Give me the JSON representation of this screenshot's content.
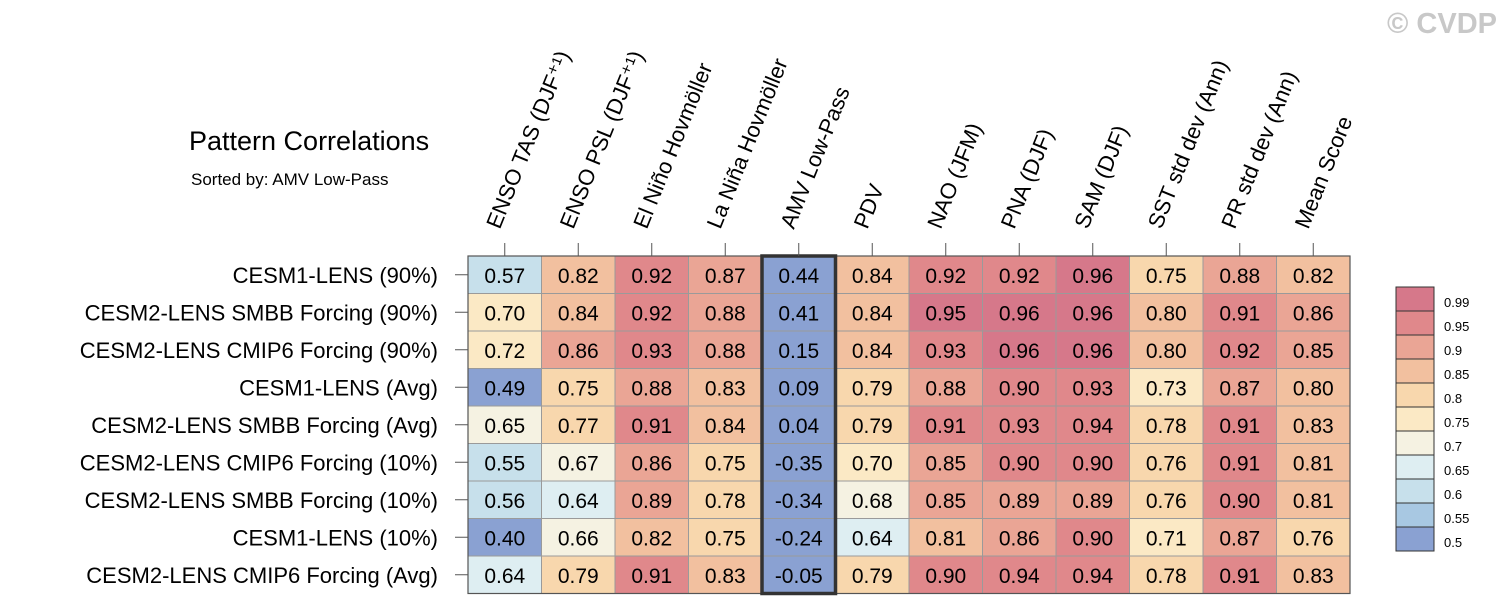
{
  "title": "Pattern Correlations",
  "subtitle": "Sorted by: AMV Low-Pass",
  "watermark": "© CVDP",
  "chart_data": {
    "type": "heatmap",
    "columns": [
      "ENSO TAS (DJF⁺¹)",
      "ENSO PSL (DJF⁺¹)",
      "El Niño Hovmöller",
      "La Niña Hovmöller",
      "AMV Low-Pass",
      "PDV",
      "NAO (JFM)",
      "PNA (DJF)",
      "SAM (DJF)",
      "SST std dev (Ann)",
      "PR std dev (Ann)",
      "Mean Score"
    ],
    "rows": [
      "CESM1-LENS (90%)",
      "CESM2-LENS SMBB Forcing (90%)",
      "CESM2-LENS CMIP6 Forcing (90%)",
      "CESM1-LENS (Avg)",
      "CESM2-LENS SMBB Forcing (Avg)",
      "CESM2-LENS CMIP6 Forcing (10%)",
      "CESM2-LENS SMBB Forcing (10%)",
      "CESM1-LENS (10%)",
      "CESM2-LENS CMIP6 Forcing (Avg)"
    ],
    "values": [
      [
        "0.57",
        "0.82",
        "0.92",
        "0.87",
        "0.44",
        "0.84",
        "0.92",
        "0.92",
        "0.96",
        "0.75",
        "0.88",
        "0.82"
      ],
      [
        "0.70",
        "0.84",
        "0.92",
        "0.88",
        "0.41",
        "0.84",
        "0.95",
        "0.96",
        "0.96",
        "0.80",
        "0.91",
        "0.86"
      ],
      [
        "0.72",
        "0.86",
        "0.93",
        "0.88",
        "0.15",
        "0.84",
        "0.93",
        "0.96",
        "0.96",
        "0.80",
        "0.92",
        "0.85"
      ],
      [
        "0.49",
        "0.75",
        "0.88",
        "0.83",
        "0.09",
        "0.79",
        "0.88",
        "0.90",
        "0.93",
        "0.73",
        "0.87",
        "0.80"
      ],
      [
        "0.65",
        "0.77",
        "0.91",
        "0.84",
        "0.04",
        "0.79",
        "0.91",
        "0.93",
        "0.94",
        "0.78",
        "0.91",
        "0.83"
      ],
      [
        "0.55",
        "0.67",
        "0.86",
        "0.75",
        "-0.35",
        "0.70",
        "0.85",
        "0.90",
        "0.90",
        "0.76",
        "0.91",
        "0.81"
      ],
      [
        "0.56",
        "0.64",
        "0.89",
        "0.78",
        "-0.34",
        "0.68",
        "0.85",
        "0.89",
        "0.89",
        "0.76",
        "0.90",
        "0.81"
      ],
      [
        "0.40",
        "0.66",
        "0.82",
        "0.75",
        "-0.24",
        "0.64",
        "0.81",
        "0.86",
        "0.90",
        "0.71",
        "0.87",
        "0.76"
      ],
      [
        "0.64",
        "0.79",
        "0.91",
        "0.83",
        "-0.05",
        "0.79",
        "0.90",
        "0.94",
        "0.94",
        "0.78",
        "0.91",
        "0.83"
      ]
    ],
    "highlighted_column": "AMV Low-Pass",
    "colorbar": {
      "labels": [
        "0.99",
        "0.95",
        "0.9",
        "0.85",
        "0.8",
        "0.75",
        "0.7",
        "0.65",
        "0.6",
        "0.55",
        "0.5"
      ],
      "colors": [
        "#d6788a",
        "#e0888b",
        "#eaa595",
        "#f2c09f",
        "#f8d7ad",
        "#fbe9c5",
        "#f5f2e2",
        "#deeef2",
        "#c7e0eb",
        "#a8c8e2",
        "#8aa1d2"
      ]
    }
  }
}
